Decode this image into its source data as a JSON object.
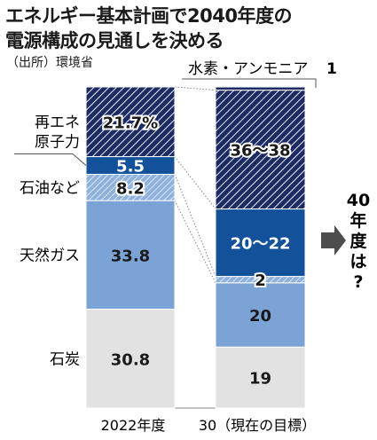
{
  "title_lines": [
    "エネルギー基本計画で2040年度の",
    "電源構成の見通しを決める"
  ],
  "source": "（出所）環境省",
  "colors": {
    "hydrogen": "#1c2b63",
    "renewable": "#1c2b63",
    "nuclear": "#13529a",
    "oil": "#8fb2dd",
    "gas": "#7ba3d6",
    "coal": "#e2e2e2",
    "arrow": "#4d4d4d"
  },
  "chart_data": {
    "type": "bar",
    "stacked": true,
    "unit": "%",
    "categories": [
      "2022年度",
      "30（現在の目標）"
    ],
    "series": [
      {
        "name": "石炭",
        "values": [
          30.8,
          19
        ],
        "labels": [
          "30.8",
          "19"
        ]
      },
      {
        "name": "天然ガス",
        "values": [
          33.8,
          20
        ],
        "labels": [
          "33.8",
          "20"
        ]
      },
      {
        "name": "石油など",
        "values": [
          8.2,
          2
        ],
        "labels": [
          "8.2",
          "2"
        ]
      },
      {
        "name": "原子力",
        "values": [
          5.5,
          21
        ],
        "labels": [
          "5.5",
          "20〜22"
        ]
      },
      {
        "name": "再エネ",
        "values": [
          21.7,
          37
        ],
        "labels": [
          "21.7%",
          "36〜38"
        ]
      },
      {
        "name": "水素・アンモニア",
        "values": [
          0,
          1
        ],
        "labels": [
          "",
          "1"
        ]
      }
    ],
    "annotation": "40年度は?"
  }
}
